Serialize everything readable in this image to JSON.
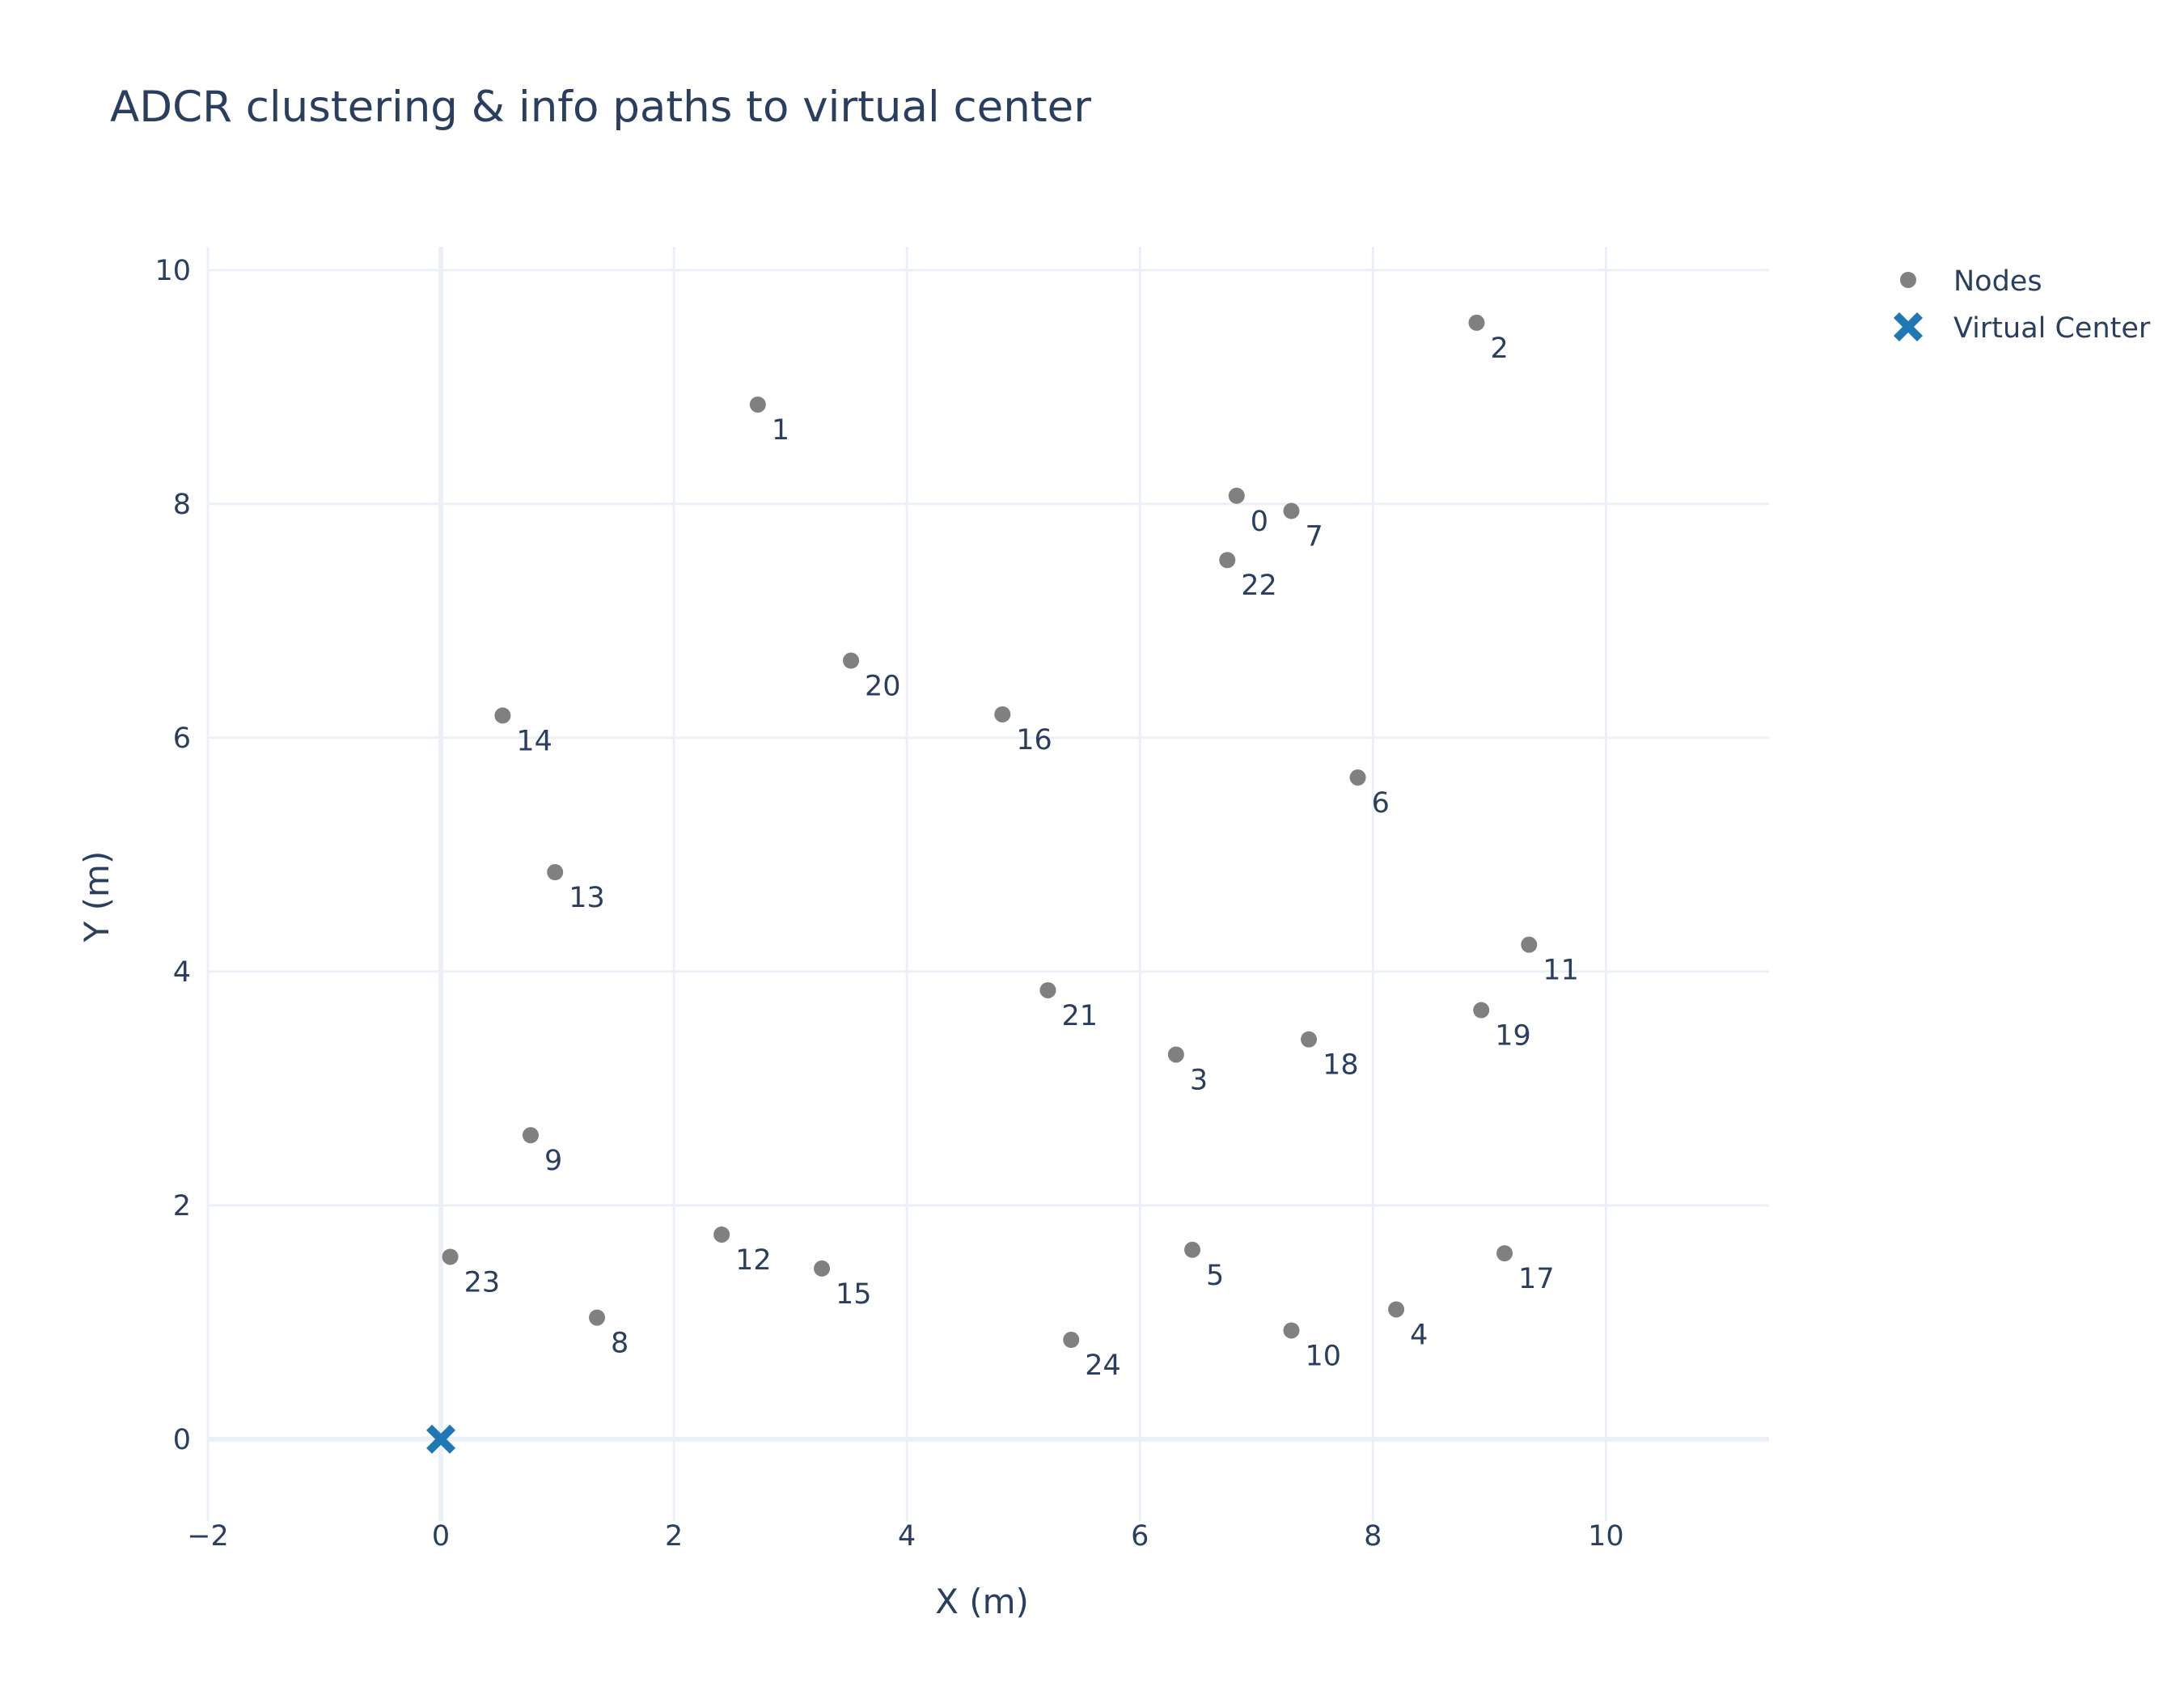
{
  "chart_data": {
    "type": "scatter",
    "title": "ADCR clustering & info paths to virtual center",
    "xlabel": "X (m)",
    "ylabel": "Y (m)",
    "xlim": [
      -2,
      11.4
    ],
    "ylim": [
      -0.7,
      10.2
    ],
    "xticks": [
      -2,
      0,
      2,
      4,
      6,
      8,
      10
    ],
    "yticks": [
      0,
      2,
      4,
      6,
      8,
      10
    ],
    "xtick_labels": [
      "−2",
      "0",
      "2",
      "4",
      "6",
      "8",
      "10"
    ],
    "ytick_labels": [
      "0",
      "2",
      "4",
      "6",
      "8",
      "10"
    ],
    "grid": true,
    "legend_position": "top-right, outside plot",
    "series": [
      {
        "name": "Nodes",
        "color": "#808080",
        "marker": "circle",
        "points": [
          {
            "label": "0",
            "x": 6.83,
            "y": 8.07
          },
          {
            "label": "1",
            "x": 2.72,
            "y": 8.85
          },
          {
            "label": "2",
            "x": 8.89,
            "y": 9.55
          },
          {
            "label": "3",
            "x": 6.31,
            "y": 3.29
          },
          {
            "label": "4",
            "x": 8.2,
            "y": 1.11
          },
          {
            "label": "5",
            "x": 6.45,
            "y": 1.62
          },
          {
            "label": "6",
            "x": 7.87,
            "y": 5.66
          },
          {
            "label": "7",
            "x": 7.3,
            "y": 7.94
          },
          {
            "label": "8",
            "x": 1.34,
            "y": 1.04
          },
          {
            "label": "9",
            "x": 0.77,
            "y": 2.6
          },
          {
            "label": "10",
            "x": 7.3,
            "y": 0.93
          },
          {
            "label": "11",
            "x": 9.34,
            "y": 4.23
          },
          {
            "label": "12",
            "x": 2.41,
            "y": 1.75
          },
          {
            "label": "13",
            "x": 0.98,
            "y": 4.85
          },
          {
            "label": "14",
            "x": 0.53,
            "y": 6.19
          },
          {
            "label": "15",
            "x": 3.27,
            "y": 1.46
          },
          {
            "label": "16",
            "x": 4.82,
            "y": 6.2
          },
          {
            "label": "17",
            "x": 9.13,
            "y": 1.59
          },
          {
            "label": "18",
            "x": 7.45,
            "y": 3.42
          },
          {
            "label": "19",
            "x": 8.93,
            "y": 3.67
          },
          {
            "label": "20",
            "x": 3.52,
            "y": 6.66
          },
          {
            "label": "21",
            "x": 5.21,
            "y": 3.84
          },
          {
            "label": "22",
            "x": 6.75,
            "y": 7.52
          },
          {
            "label": "23",
            "x": 0.08,
            "y": 1.56
          },
          {
            "label": "24",
            "x": 5.41,
            "y": 0.85
          }
        ]
      },
      {
        "name": "Virtual Center",
        "color": "#1f77b4",
        "marker": "x",
        "points": [
          {
            "x": 0,
            "y": 0
          }
        ]
      }
    ]
  }
}
